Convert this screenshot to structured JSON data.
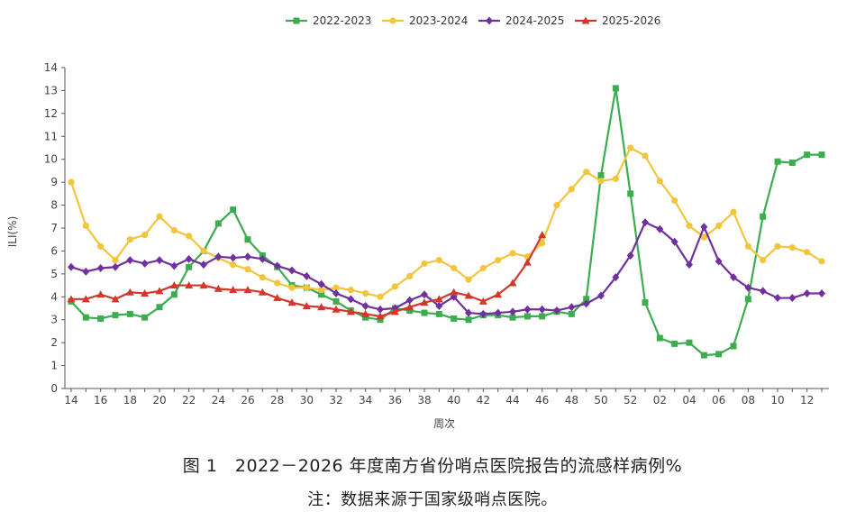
{
  "chart_data": {
    "type": "line",
    "xlabel": "周次",
    "ylabel": "ILI(%)",
    "ylim": [
      0,
      14
    ],
    "yticks": [
      0,
      1,
      2,
      3,
      4,
      5,
      6,
      7,
      8,
      9,
      10,
      11,
      12,
      13,
      14
    ],
    "x": [
      "14",
      "15",
      "16",
      "17",
      "18",
      "19",
      "20",
      "21",
      "22",
      "23",
      "24",
      "25",
      "26",
      "27",
      "28",
      "29",
      "30",
      "31",
      "32",
      "33",
      "34",
      "35",
      "36",
      "37",
      "38",
      "39",
      "40",
      "41",
      "42",
      "43",
      "44",
      "45",
      "46",
      "47",
      "48",
      "49",
      "50",
      "51",
      "52",
      "01",
      "02",
      "03",
      "04",
      "05",
      "06",
      "07",
      "08",
      "09",
      "10",
      "11",
      "12",
      "13"
    ],
    "xtick_labels": [
      "14",
      "16",
      "18",
      "20",
      "22",
      "24",
      "26",
      "28",
      "30",
      "32",
      "34",
      "36",
      "38",
      "40",
      "42",
      "44",
      "46",
      "48",
      "50",
      "52",
      "02",
      "04",
      "06",
      "08",
      "10",
      "12"
    ],
    "legend_position": "top-center",
    "grid": false,
    "series": [
      {
        "name": "2022-2023",
        "color": "#3cad4f",
        "marker": "square",
        "values": [
          3.8,
          3.1,
          3.05,
          3.2,
          3.25,
          3.1,
          3.55,
          4.1,
          5.3,
          6.0,
          7.2,
          7.8,
          6.5,
          5.8,
          5.3,
          4.5,
          4.4,
          4.1,
          3.8,
          3.4,
          3.1,
          3.0,
          3.5,
          3.4,
          3.3,
          3.25,
          3.05,
          3.0,
          3.2,
          3.2,
          3.1,
          3.15,
          3.15,
          3.35,
          3.25,
          3.9,
          9.3,
          13.1,
          8.5,
          3.75,
          2.2,
          1.95,
          2.0,
          1.45,
          1.5,
          1.85,
          3.9,
          7.5,
          9.9,
          9.85,
          10.2,
          10.2
        ]
      },
      {
        "name": "2023-2024",
        "color": "#f2c53d",
        "marker": "circle",
        "values": [
          9.0,
          7.1,
          6.2,
          5.6,
          6.5,
          6.7,
          7.5,
          6.9,
          6.65,
          6.0,
          5.7,
          5.4,
          5.2,
          4.85,
          4.6,
          4.4,
          4.4,
          4.3,
          4.4,
          4.3,
          4.15,
          4.0,
          4.45,
          4.9,
          5.45,
          5.6,
          5.25,
          4.75,
          5.25,
          5.6,
          5.9,
          5.75,
          6.35,
          8.0,
          8.7,
          9.45,
          9.05,
          9.15,
          10.5,
          10.15,
          9.05,
          8.2,
          7.1,
          6.6,
          7.1,
          7.7,
          6.2,
          5.6,
          6.2,
          6.15,
          5.95,
          5.55
        ]
      },
      {
        "name": "2024-2025",
        "color": "#7030a0",
        "marker": "diamond",
        "values": [
          5.3,
          5.1,
          5.25,
          5.3,
          5.6,
          5.45,
          5.6,
          5.35,
          5.65,
          5.4,
          5.75,
          5.7,
          5.75,
          5.65,
          5.35,
          5.15,
          4.9,
          4.55,
          4.15,
          3.9,
          3.6,
          3.45,
          3.5,
          3.85,
          4.1,
          3.6,
          4.0,
          3.3,
          3.25,
          3.3,
          3.35,
          3.45,
          3.45,
          3.4,
          3.55,
          3.7,
          4.05,
          4.85,
          5.8,
          7.25,
          6.95,
          6.4,
          5.4,
          7.05,
          5.55,
          4.85,
          4.4,
          4.25,
          3.95,
          3.95,
          4.15,
          4.15
        ]
      },
      {
        "name": "2025-2026",
        "color": "#d5362b",
        "marker": "triangle",
        "values": [
          3.9,
          3.9,
          4.1,
          3.9,
          4.2,
          4.15,
          4.25,
          4.5,
          4.5,
          4.5,
          4.35,
          4.3,
          4.3,
          4.2,
          3.95,
          3.75,
          3.6,
          3.55,
          3.45,
          3.35,
          3.25,
          3.15,
          3.35,
          3.55,
          3.75,
          3.9,
          4.2,
          4.05,
          3.8,
          4.1,
          4.6,
          5.5,
          6.7,
          null,
          null,
          null,
          null,
          null,
          null,
          null,
          null,
          null,
          null,
          null,
          null,
          null,
          null,
          null,
          null,
          null,
          null,
          null
        ]
      }
    ]
  },
  "caption": {
    "figure": "图 1　2022－2026 年度南方省份哨点医院报告的流感样病例%",
    "note": "注：数据来源于国家级哨点医院。"
  }
}
